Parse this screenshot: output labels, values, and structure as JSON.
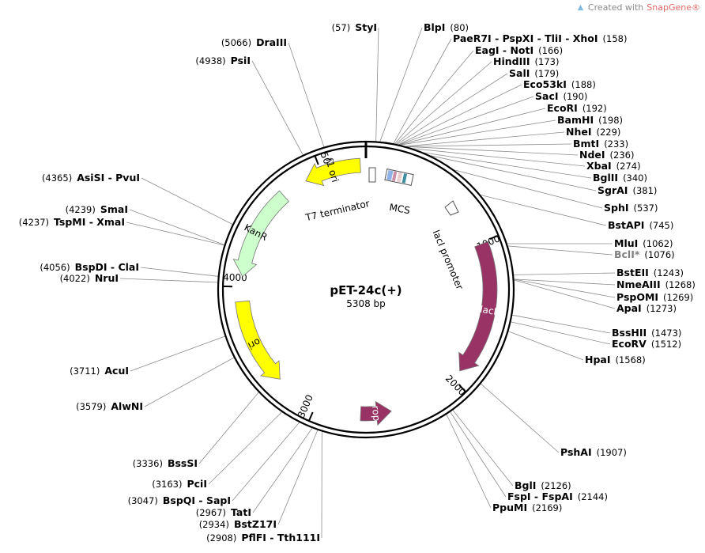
{
  "watermark": {
    "prefix": "Created with",
    "brand": "SnapGene®"
  },
  "plasmid": {
    "name": "pET-24c(+)",
    "size_label": "5308 bp",
    "length": 5308
  },
  "ticks": [
    "1000",
    "2000",
    "3000",
    "4000",
    "5000"
  ],
  "sites": [
    {
      "name": "StyI",
      "pos": 57
    },
    {
      "name": "BlpI",
      "pos": 80
    },
    {
      "name": "PaeR7I - PspXI - TliI - XhoI",
      "pos": 158
    },
    {
      "name": "EagI - NotI",
      "pos": 166
    },
    {
      "name": "HindIII",
      "pos": 173
    },
    {
      "name": "SalI",
      "pos": 179
    },
    {
      "name": "Eco53kI",
      "pos": 188
    },
    {
      "name": "SacI",
      "pos": 190
    },
    {
      "name": "EcoRI",
      "pos": 192
    },
    {
      "name": "BamHI",
      "pos": 198
    },
    {
      "name": "NheI",
      "pos": 229
    },
    {
      "name": "BmtI",
      "pos": 233
    },
    {
      "name": "NdeI",
      "pos": 236
    },
    {
      "name": "XbaI",
      "pos": 274
    },
    {
      "name": "BglII",
      "pos": 340
    },
    {
      "name": "SgrAI",
      "pos": 381
    },
    {
      "name": "SphI",
      "pos": 537
    },
    {
      "name": "BstAPI",
      "pos": 745
    },
    {
      "name": "MluI",
      "pos": 1062
    },
    {
      "name": "BclI*",
      "pos": 1076,
      "style": "gray"
    },
    {
      "name": "BstEII",
      "pos": 1243
    },
    {
      "name": "NmeAIII",
      "pos": 1268
    },
    {
      "name": "PspOMI",
      "pos": 1269
    },
    {
      "name": "ApaI",
      "pos": 1273
    },
    {
      "name": "BssHII",
      "pos": 1473
    },
    {
      "name": "EcoRV",
      "pos": 1512
    },
    {
      "name": "HpaI",
      "pos": 1568
    },
    {
      "name": "PshAI",
      "pos": 1907
    },
    {
      "name": "BglI",
      "pos": 2126
    },
    {
      "name": "FspI - FspAI",
      "pos": 2144
    },
    {
      "name": "PpuMI",
      "pos": 2169
    },
    {
      "name": "PflFI - Tth111I",
      "pos": 2908
    },
    {
      "name": "BstZ17I",
      "pos": 2934
    },
    {
      "name": "TatI",
      "pos": 2967
    },
    {
      "name": "BspQI - SapI",
      "pos": 3047
    },
    {
      "name": "PciI",
      "pos": 3163
    },
    {
      "name": "BssSI",
      "pos": 3336
    },
    {
      "name": "AlwNI",
      "pos": 3579
    },
    {
      "name": "AcuI",
      "pos": 3711
    },
    {
      "name": "NruI",
      "pos": 4022
    },
    {
      "name": "BspDI - ClaI",
      "pos": 4056
    },
    {
      "name": "TspMI - XmaI",
      "pos": 4237
    },
    {
      "name": "SmaI",
      "pos": 4239
    },
    {
      "name": "AsiSI - PvuI",
      "pos": 4365
    },
    {
      "name": "PsiI",
      "pos": 4938
    },
    {
      "name": "DraIII",
      "pos": 5066
    }
  ],
  "features": [
    {
      "name": "lacI",
      "type": "arrow",
      "strand": "+",
      "start": 1010,
      "end": 1930,
      "color": "#993366"
    },
    {
      "name": "rop",
      "type": "arrow",
      "strand": "-",
      "start": 2480,
      "end": 2690,
      "color": "#993366"
    },
    {
      "name": "ori",
      "type": "arrow",
      "strand": "-",
      "start": 3300,
      "end": 3900,
      "color": "#ffff00"
    },
    {
      "name": "KanR",
      "type": "arrow",
      "strand": "-",
      "start": 4070,
      "end": 4700,
      "color": "#ccffcc"
    },
    {
      "name": "f1 ori",
      "type": "arrow",
      "strand": "-",
      "start": 4880,
      "end": 5270,
      "color": "#ffff00"
    }
  ],
  "labels": {
    "t7_terminator": "T7 terminator",
    "mcs": "MCS",
    "laci_promoter": "lacI promoter"
  }
}
